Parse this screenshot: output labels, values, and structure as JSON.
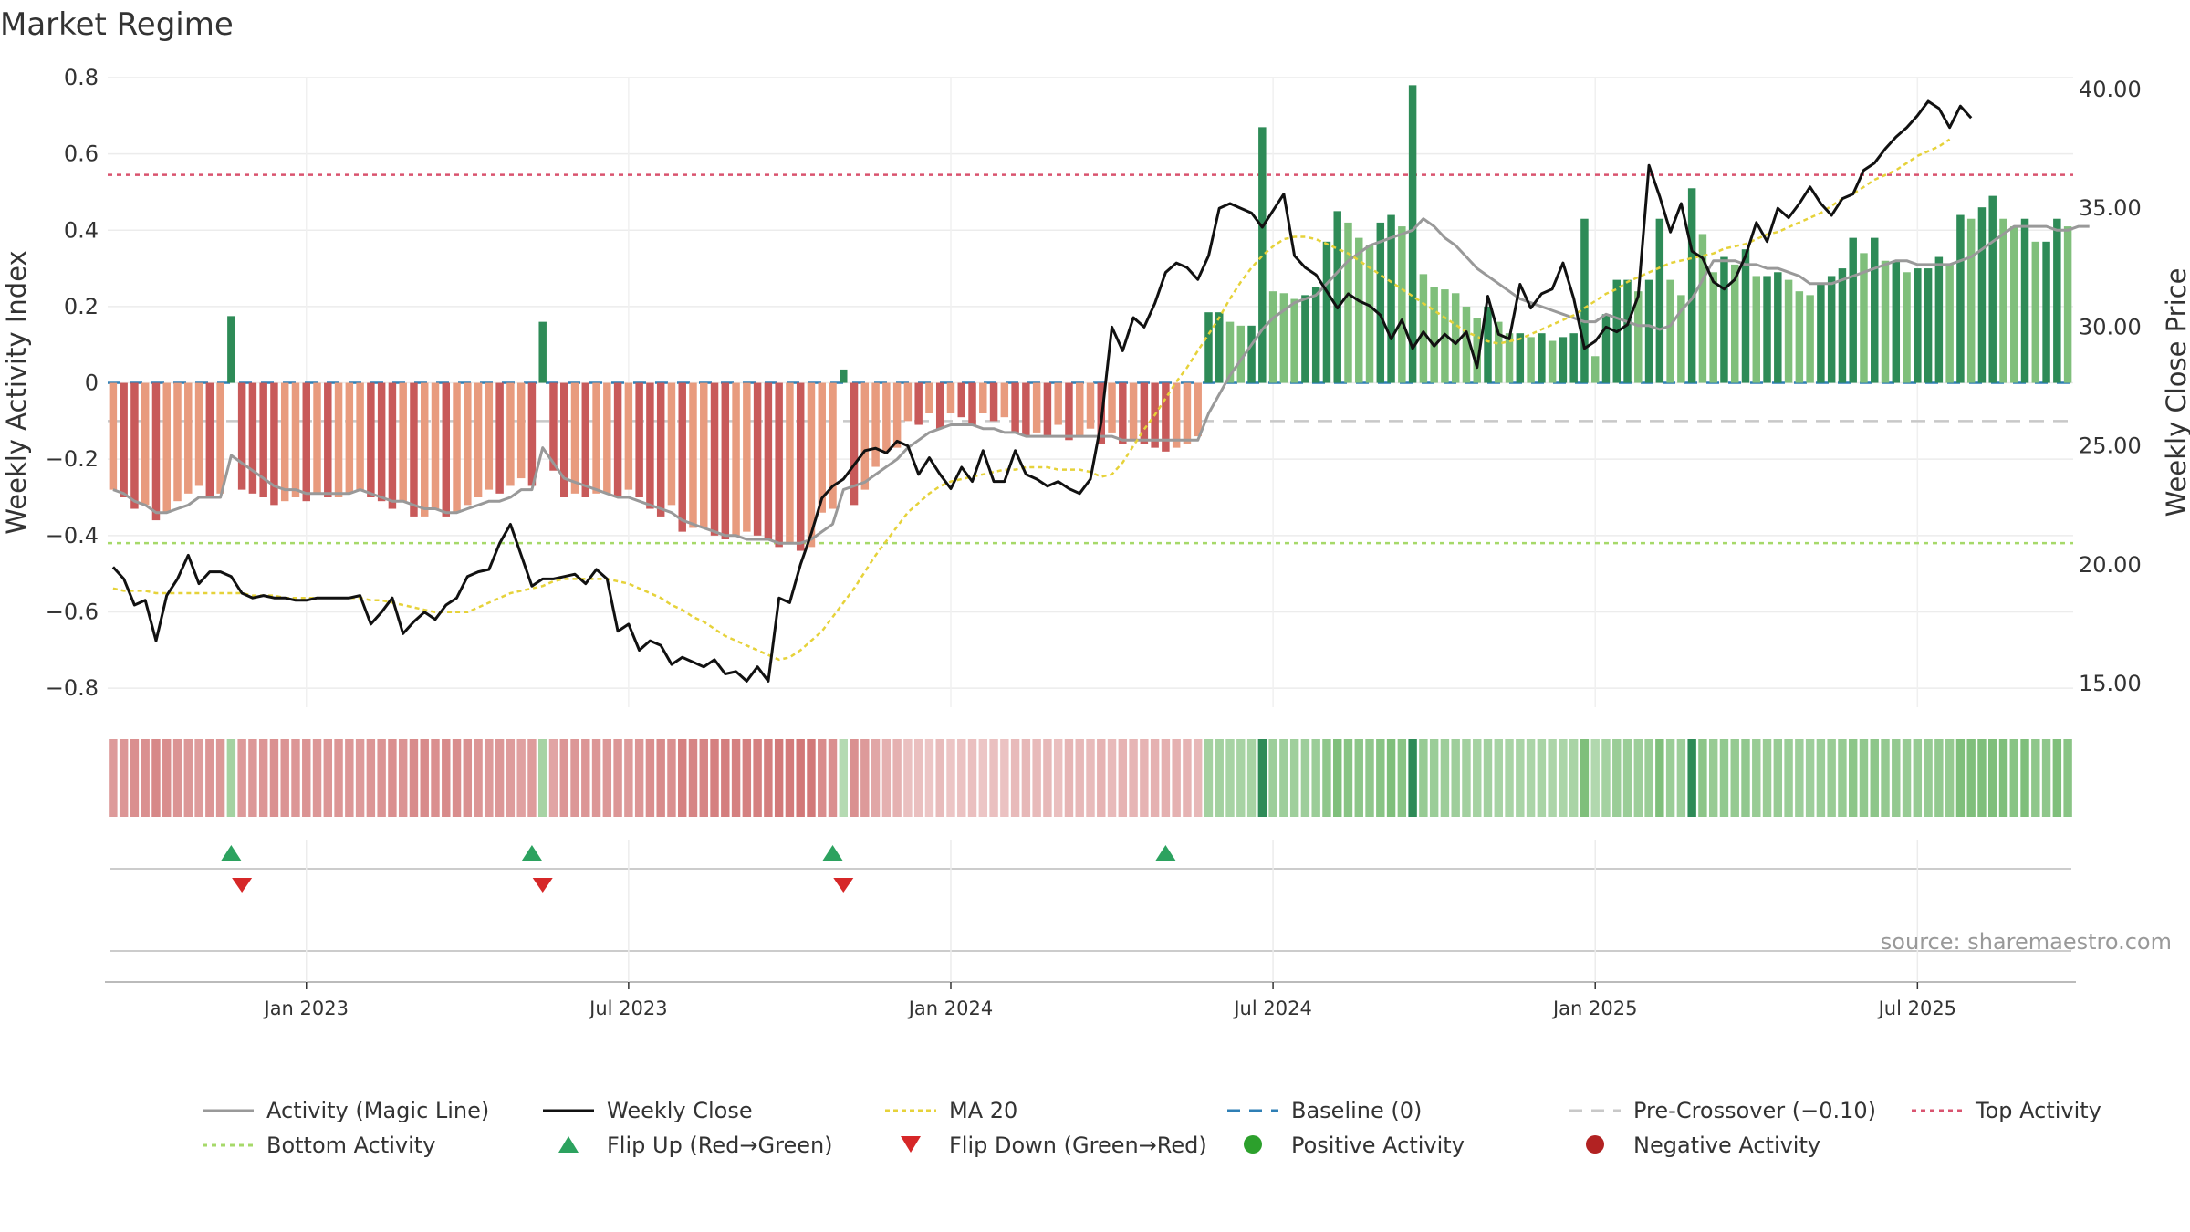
{
  "chart_data": {
    "type": "bar",
    "title": "Market Regime",
    "ylabel": "Weekly Activity Index",
    "y2label": "Weekly Close Price",
    "ylim": [
      -0.85,
      0.8
    ],
    "y2lim": [
      14,
      40.5
    ],
    "yticks": [
      "0.8",
      "0.6",
      "0.4",
      "0.2",
      "0",
      "−0.2",
      "−0.4",
      "−0.6",
      "−0.8"
    ],
    "ytick_values": [
      0.8,
      0.6,
      0.4,
      0.2,
      0,
      -0.2,
      -0.4,
      -0.6,
      -0.8
    ],
    "y2ticks": [
      "40.00",
      "35.00",
      "30.00",
      "25.00",
      "20.00",
      "15.00"
    ],
    "y2tick_values": [
      40,
      35,
      30,
      25,
      20,
      15
    ],
    "xticks": [
      "Jan 2023",
      "Jul 2023",
      "Jan 2024",
      "Jul 2024",
      "Jan 2025",
      "Jul 2025"
    ],
    "xtick_weeks": [
      18,
      48,
      78,
      108,
      138,
      168
    ],
    "top_activity": 0.545,
    "bottom_activity": -0.42,
    "pre_crossover": -0.1,
    "source": "source: sharemaestro.com",
    "activity": [
      -0.28,
      -0.3,
      -0.33,
      -0.32,
      -0.36,
      -0.34,
      -0.31,
      -0.29,
      -0.27,
      -0.3,
      -0.29,
      0.175,
      -0.28,
      -0.29,
      -0.3,
      -0.32,
      -0.31,
      -0.3,
      -0.31,
      -0.29,
      -0.3,
      -0.3,
      -0.29,
      -0.28,
      -0.3,
      -0.31,
      -0.33,
      -0.31,
      -0.35,
      -0.35,
      -0.33,
      -0.35,
      -0.34,
      -0.32,
      -0.3,
      -0.28,
      -0.29,
      -0.27,
      -0.25,
      -0.27,
      0.16,
      -0.23,
      -0.3,
      -0.29,
      -0.3,
      -0.29,
      -0.29,
      -0.3,
      -0.28,
      -0.3,
      -0.33,
      -0.35,
      -0.32,
      -0.39,
      -0.38,
      -0.38,
      -0.4,
      -0.41,
      -0.4,
      -0.39,
      -0.4,
      -0.41,
      -0.43,
      -0.42,
      -0.44,
      -0.43,
      -0.34,
      -0.33,
      0.035,
      -0.32,
      -0.28,
      -0.22,
      -0.18,
      -0.17,
      -0.1,
      -0.11,
      -0.08,
      -0.12,
      -0.08,
      -0.09,
      -0.11,
      -0.08,
      -0.1,
      -0.09,
      -0.13,
      -0.14,
      -0.13,
      -0.14,
      -0.11,
      -0.15,
      -0.14,
      -0.12,
      -0.16,
      -0.13,
      -0.16,
      -0.15,
      -0.16,
      -0.17,
      -0.18,
      -0.17,
      -0.16,
      -0.14,
      0.185,
      0.185,
      0.16,
      0.15,
      0.15,
      0.67,
      0.24,
      0.235,
      0.22,
      0.23,
      0.25,
      0.37,
      0.45,
      0.42,
      0.38,
      0.36,
      0.42,
      0.44,
      0.41,
      0.78,
      0.285,
      0.25,
      0.245,
      0.235,
      0.2,
      0.17,
      0.2,
      0.16,
      0.13,
      0.13,
      0.12,
      0.13,
      0.11,
      0.12,
      0.13,
      0.43,
      0.07,
      0.18,
      0.27,
      0.27,
      0.24,
      0.27,
      0.43,
      0.27,
      0.23,
      0.51,
      0.39,
      0.29,
      0.33,
      0.31,
      0.35,
      0.28,
      0.28,
      0.29,
      0.27,
      0.24,
      0.23,
      0.26,
      0.28,
      0.3,
      0.38,
      0.34,
      0.38,
      0.32,
      0.32,
      0.29,
      0.3,
      0.3,
      0.33,
      0.31,
      0.44,
      0.43,
      0.46,
      0.49,
      0.43,
      0.41,
      0.43,
      0.37,
      0.37,
      0.43,
      0.41
    ],
    "magic_line": [
      -0.28,
      -0.29,
      -0.31,
      -0.32,
      -0.34,
      -0.34,
      -0.33,
      -0.32,
      -0.3,
      -0.3,
      -0.3,
      -0.19,
      -0.21,
      -0.23,
      -0.25,
      -0.27,
      -0.28,
      -0.28,
      -0.29,
      -0.29,
      -0.29,
      -0.29,
      -0.29,
      -0.28,
      -0.29,
      -0.3,
      -0.31,
      -0.31,
      -0.32,
      -0.33,
      -0.33,
      -0.34,
      -0.34,
      -0.33,
      -0.32,
      -0.31,
      -0.31,
      -0.3,
      -0.28,
      -0.28,
      -0.17,
      -0.21,
      -0.25,
      -0.26,
      -0.27,
      -0.28,
      -0.29,
      -0.3,
      -0.3,
      -0.31,
      -0.32,
      -0.33,
      -0.34,
      -0.36,
      -0.37,
      -0.38,
      -0.39,
      -0.4,
      -0.4,
      -0.41,
      -0.41,
      -0.41,
      -0.42,
      -0.42,
      -0.42,
      -0.41,
      -0.39,
      -0.37,
      -0.28,
      -0.27,
      -0.26,
      -0.24,
      -0.22,
      -0.2,
      -0.17,
      -0.15,
      -0.13,
      -0.12,
      -0.11,
      -0.11,
      -0.11,
      -0.12,
      -0.12,
      -0.13,
      -0.13,
      -0.14,
      -0.14,
      -0.14,
      -0.14,
      -0.14,
      -0.14,
      -0.14,
      -0.14,
      -0.14,
      -0.15,
      -0.15,
      -0.15,
      -0.15,
      -0.15,
      -0.15,
      -0.15,
      -0.15,
      -0.08,
      -0.03,
      0.02,
      0.06,
      0.1,
      0.14,
      0.17,
      0.19,
      0.21,
      0.22,
      0.23,
      0.26,
      0.29,
      0.32,
      0.34,
      0.36,
      0.37,
      0.38,
      0.39,
      0.4,
      0.43,
      0.41,
      0.38,
      0.36,
      0.33,
      0.3,
      0.28,
      0.26,
      0.24,
      0.22,
      0.21,
      0.2,
      0.19,
      0.18,
      0.17,
      0.16,
      0.16,
      0.18,
      0.17,
      0.16,
      0.15,
      0.15,
      0.14,
      0.15,
      0.19,
      0.22,
      0.27,
      0.32,
      0.32,
      0.32,
      0.31,
      0.31,
      0.3,
      0.3,
      0.29,
      0.28,
      0.26,
      0.26,
      0.26,
      0.27,
      0.28,
      0.29,
      0.3,
      0.31,
      0.32,
      0.32,
      0.31,
      0.31,
      0.31,
      0.31,
      0.32,
      0.33,
      0.35,
      0.37,
      0.39,
      0.41,
      0.41,
      0.41,
      0.41,
      0.4,
      0.4,
      0.41,
      0.41
    ],
    "weekly_close": [
      19.9,
      19.4,
      18.3,
      18.5,
      16.8,
      18.7,
      19.4,
      20.4,
      19.2,
      19.7,
      19.7,
      19.5,
      18.8,
      18.6,
      18.7,
      18.6,
      18.6,
      18.5,
      18.5,
      18.6,
      18.6,
      18.6,
      18.6,
      18.7,
      17.5,
      18.0,
      18.6,
      17.1,
      17.6,
      18.0,
      17.7,
      18.3,
      18.6,
      19.5,
      19.7,
      19.8,
      20.9,
      21.7,
      20.4,
      19.1,
      19.4,
      19.4,
      19.5,
      19.6,
      19.2,
      19.8,
      19.4,
      17.2,
      17.5,
      16.4,
      16.8,
      16.6,
      15.8,
      16.1,
      15.9,
      15.7,
      16.0,
      15.4,
      15.5,
      15.1,
      15.7,
      15.1,
      18.6,
      18.4,
      20.0,
      21.3,
      22.8,
      23.3,
      23.6,
      24.2,
      24.8,
      24.9,
      24.7,
      25.2,
      25.0,
      23.8,
      24.5,
      23.8,
      23.2,
      24.1,
      23.5,
      24.8,
      23.5,
      23.5,
      24.8,
      23.8,
      23.6,
      23.3,
      23.5,
      23.2,
      23.0,
      23.6,
      26.0,
      30.0,
      29.0,
      30.4,
      30.0,
      31.0,
      32.3,
      32.7,
      32.5,
      32.0,
      33.0,
      35.0,
      35.2,
      35.0,
      34.8,
      34.2,
      34.9,
      35.6,
      33.0,
      32.5,
      32.2,
      31.5,
      30.8,
      31.4,
      31.1,
      30.9,
      30.5,
      29.5,
      30.3,
      29.1,
      29.8,
      29.2,
      29.7,
      29.3,
      29.8,
      28.3,
      31.3,
      29.7,
      29.5,
      31.8,
      30.8,
      31.4,
      31.6,
      32.7,
      31.2,
      29.1,
      29.4,
      30.0,
      29.8,
      30.1,
      31.3,
      36.8,
      35.5,
      34.0,
      35.2,
      33.2,
      32.9,
      31.9,
      31.6,
      32.0,
      33.0,
      34.4,
      33.6,
      35.0,
      34.6,
      35.2,
      35.9,
      35.2,
      34.7,
      35.4,
      35.6,
      36.6,
      36.9,
      37.5,
      38.0,
      38.4,
      38.9,
      39.5,
      39.2,
      38.4,
      39.3,
      38.8
    ],
    "ma20": [
      19.0,
      18.9,
      18.9,
      18.9,
      18.8,
      18.8,
      18.8,
      18.8,
      18.8,
      18.8,
      18.8,
      18.8,
      18.8,
      18.7,
      18.7,
      18.7,
      18.6,
      18.6,
      18.6,
      18.6,
      18.6,
      18.6,
      18.6,
      18.6,
      18.5,
      18.5,
      18.4,
      18.3,
      18.2,
      18.1,
      18.0,
      18.0,
      18.0,
      18.0,
      18.2,
      18.4,
      18.6,
      18.8,
      18.9,
      19.0,
      19.1,
      19.3,
      19.4,
      19.4,
      19.4,
      19.4,
      19.4,
      19.3,
      19.2,
      19.0,
      18.8,
      18.6,
      18.3,
      18.1,
      17.8,
      17.6,
      17.3,
      17.0,
      16.8,
      16.6,
      16.4,
      16.2,
      16.0,
      16.1,
      16.4,
      16.8,
      17.2,
      17.8,
      18.4,
      19.0,
      19.7,
      20.4,
      21.0,
      21.6,
      22.2,
      22.6,
      23.0,
      23.3,
      23.5,
      23.6,
      23.7,
      23.8,
      23.9,
      24.0,
      24.0,
      24.1,
      24.1,
      24.1,
      24.0,
      24.0,
      24.0,
      23.9,
      23.7,
      23.8,
      24.3,
      25.0,
      25.7,
      26.3,
      27.0,
      27.7,
      28.3,
      29.0,
      29.7,
      30.4,
      31.2,
      31.9,
      32.5,
      33.0,
      33.4,
      33.7,
      33.8,
      33.8,
      33.7,
      33.5,
      33.3,
      33.1,
      32.8,
      32.5,
      32.2,
      31.9,
      31.6,
      31.3,
      31.0,
      30.7,
      30.4,
      30.1,
      29.8,
      29.6,
      29.4,
      29.3,
      29.4,
      29.5,
      29.7,
      29.9,
      30.1,
      30.3,
      30.5,
      30.8,
      31.1,
      31.4,
      31.6,
      31.9,
      32.1,
      32.3,
      32.5,
      32.7,
      32.8,
      32.9,
      33.0,
      33.1,
      33.3,
      33.4,
      33.5,
      33.7,
      33.9,
      34.0,
      34.2,
      34.4,
      34.6,
      34.8,
      35.1,
      35.4,
      35.6,
      35.9,
      36.2,
      36.4,
      36.6,
      36.9,
      37.2,
      37.4,
      37.6,
      37.9
    ],
    "flip_up": [
      11,
      39,
      67,
      98
    ],
    "flip_down": [
      12,
      40,
      68
    ],
    "colors": {
      "dark_red": "#c85a5a",
      "light_red": "#e89b7e",
      "dark_green": "#2e8b57",
      "light_green": "#7fbf7b",
      "magic_line": "#999999",
      "weekly_close": "#111111",
      "ma20": "#e6d23a",
      "baseline": "#2f7fb5",
      "pre_crossover": "#c8c8c8",
      "top_activity": "#d9536f",
      "bottom_activity": "#a6d96a",
      "flip_up": "#2ca25f",
      "flip_down": "#d62728",
      "positive": "#2ca02c",
      "negative": "#b22222"
    },
    "legend_placement": "bottom",
    "legend": [
      "Activity (Magic Line)",
      "Weekly Close",
      "MA 20",
      "Baseline (0)",
      "Pre-Crossover (−0.10)",
      "Top Activity",
      "Bottom Activity",
      "Flip Up (Red→Green)",
      "Flip Down (Green→Red)",
      "Positive Activity",
      "Negative Activity"
    ]
  }
}
